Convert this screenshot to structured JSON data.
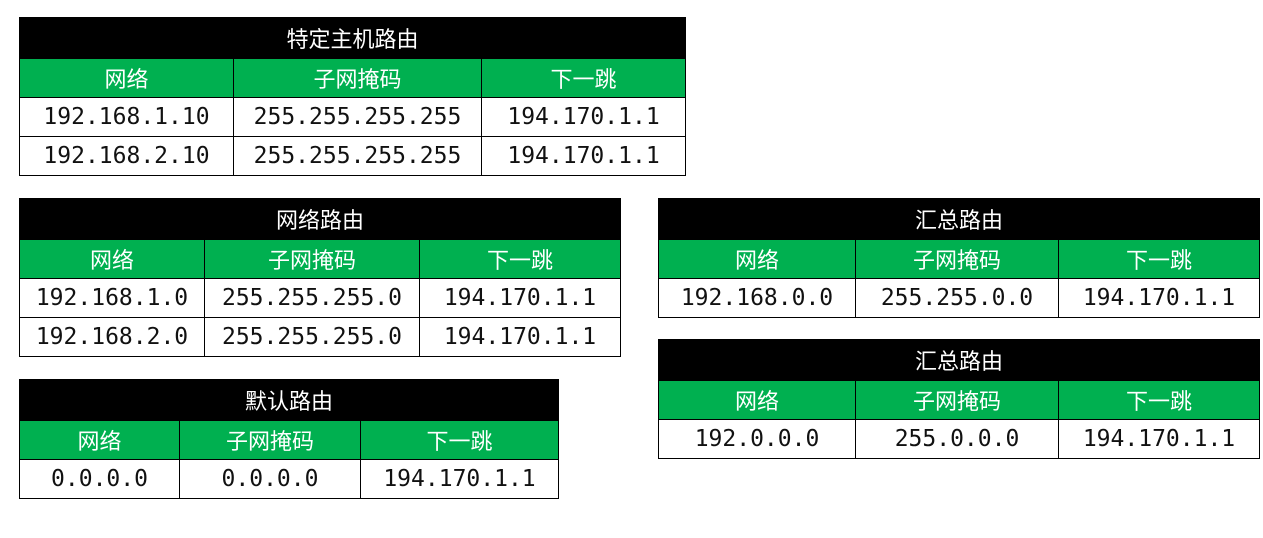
{
  "host_routes": {
    "title": "特定主机路由",
    "headers": [
      "网络",
      "子网掩码",
      "下一跳"
    ],
    "rows": [
      [
        "192.168.1.10",
        "255.255.255.255",
        "194.170.1.1"
      ],
      [
        "192.168.2.10",
        "255.255.255.255",
        "194.170.1.1"
      ]
    ]
  },
  "network_routes": {
    "title": "网络路由",
    "headers": [
      "网络",
      "子网掩码",
      "下一跳"
    ],
    "rows": [
      [
        "192.168.1.0",
        "255.255.255.0",
        "194.170.1.1"
      ],
      [
        "192.168.2.0",
        "255.255.255.0",
        "194.170.1.1"
      ]
    ]
  },
  "default_route": {
    "title": "默认路由",
    "headers": [
      "网络",
      "子网掩码",
      "下一跳"
    ],
    "rows": [
      [
        "0.0.0.0",
        "0.0.0.0",
        "194.170.1.1"
      ]
    ]
  },
  "summary_route_1": {
    "title": "汇总路由",
    "headers": [
      "网络",
      "子网掩码",
      "下一跳"
    ],
    "rows": [
      [
        "192.168.0.0",
        "255.255.0.0",
        "194.170.1.1"
      ]
    ]
  },
  "summary_route_2": {
    "title": "汇总路由",
    "headers": [
      "网络",
      "子网掩码",
      "下一跳"
    ],
    "rows": [
      [
        "192.0.0.0",
        "255.0.0.0",
        "194.170.1.1"
      ]
    ]
  },
  "colors": {
    "title_bg": "#000000",
    "header_bg": "#00b050",
    "header_text": "#ffffff",
    "cell_text": "#111111"
  }
}
